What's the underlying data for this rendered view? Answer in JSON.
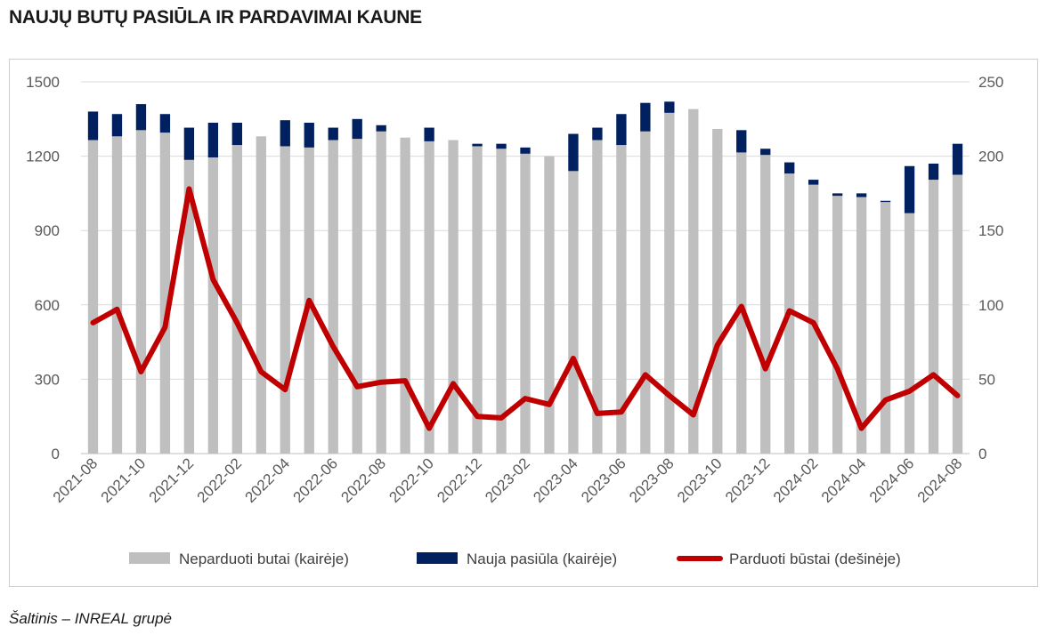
{
  "title": "NAUJŲ BUTŲ PASIŪLA IR PARDAVIMAI KAUNE",
  "source": "Šaltinis – INREAL grupė",
  "colors": {
    "unsold": "#bfbfbf",
    "new_supply": "#002060",
    "sold": "#c00000",
    "grid": "#d9d9d9",
    "axis_text": "#595959"
  },
  "chart_data": {
    "type": "bar",
    "stacked": true,
    "categories": [
      "2021-08",
      "2021-09",
      "2021-10",
      "2021-11",
      "2021-12",
      "2022-01",
      "2022-02",
      "2022-03",
      "2022-04",
      "2022-05",
      "2022-06",
      "2022-07",
      "2022-08",
      "2022-09",
      "2022-10",
      "2022-11",
      "2022-12",
      "2023-01",
      "2023-02",
      "2023-03",
      "2023-04",
      "2023-05",
      "2023-06",
      "2023-07",
      "2023-08",
      "2023-09",
      "2023-10",
      "2023-11",
      "2023-12",
      "2024-01",
      "2024-02",
      "2024-03",
      "2024-04",
      "2024-05",
      "2024-06",
      "2024-07",
      "2024-08"
    ],
    "x_tick_labels": [
      "2021-08",
      "2021-10",
      "2021-12",
      "2022-02",
      "2022-04",
      "2022-06",
      "2022-08",
      "2022-10",
      "2022-12",
      "2023-02",
      "2023-04",
      "2023-06",
      "2023-08",
      "2023-10",
      "2023-12",
      "2024-02",
      "2024-04",
      "2024-06",
      "2024-08"
    ],
    "series": [
      {
        "name": "Neparduoti butai (kairėje)",
        "type": "bar",
        "axis": "left",
        "values": [
          1265,
          1280,
          1305,
          1295,
          1185,
          1195,
          1245,
          1280,
          1240,
          1235,
          1265,
          1270,
          1300,
          1275,
          1260,
          1265,
          1240,
          1230,
          1210,
          1200,
          1140,
          1265,
          1245,
          1300,
          1375,
          1390,
          1310,
          1215,
          1205,
          1130,
          1085,
          1040,
          1035,
          1015,
          970,
          1105,
          1125
        ]
      },
      {
        "name": "Nauja pasiūla (kairėje)",
        "type": "bar",
        "axis": "left",
        "values": [
          115,
          90,
          105,
          75,
          130,
          140,
          90,
          0,
          105,
          100,
          50,
          80,
          25,
          0,
          55,
          0,
          10,
          20,
          25,
          0,
          150,
          50,
          125,
          115,
          45,
          0,
          0,
          90,
          25,
          45,
          20,
          10,
          15,
          5,
          190,
          65,
          125
        ]
      },
      {
        "name": "Parduoti būstai (dešinėje)",
        "type": "line",
        "axis": "right",
        "values": [
          88,
          97,
          55,
          85,
          178,
          117,
          88,
          55,
          43,
          103,
          72,
          45,
          48,
          49,
          17,
          47,
          25,
          24,
          37,
          33,
          64,
          27,
          28,
          53,
          39,
          26,
          73,
          99,
          57,
          96,
          88,
          57,
          17,
          36,
          42,
          53,
          39
        ]
      }
    ],
    "y_left": {
      "min": 0,
      "max": 1500,
      "ticks": [
        0,
        300,
        600,
        900,
        1200,
        1500
      ]
    },
    "y_right": {
      "min": 0,
      "max": 250,
      "ticks": [
        0,
        50,
        100,
        150,
        200,
        250
      ]
    },
    "legend_position": "bottom",
    "grid": true
  }
}
